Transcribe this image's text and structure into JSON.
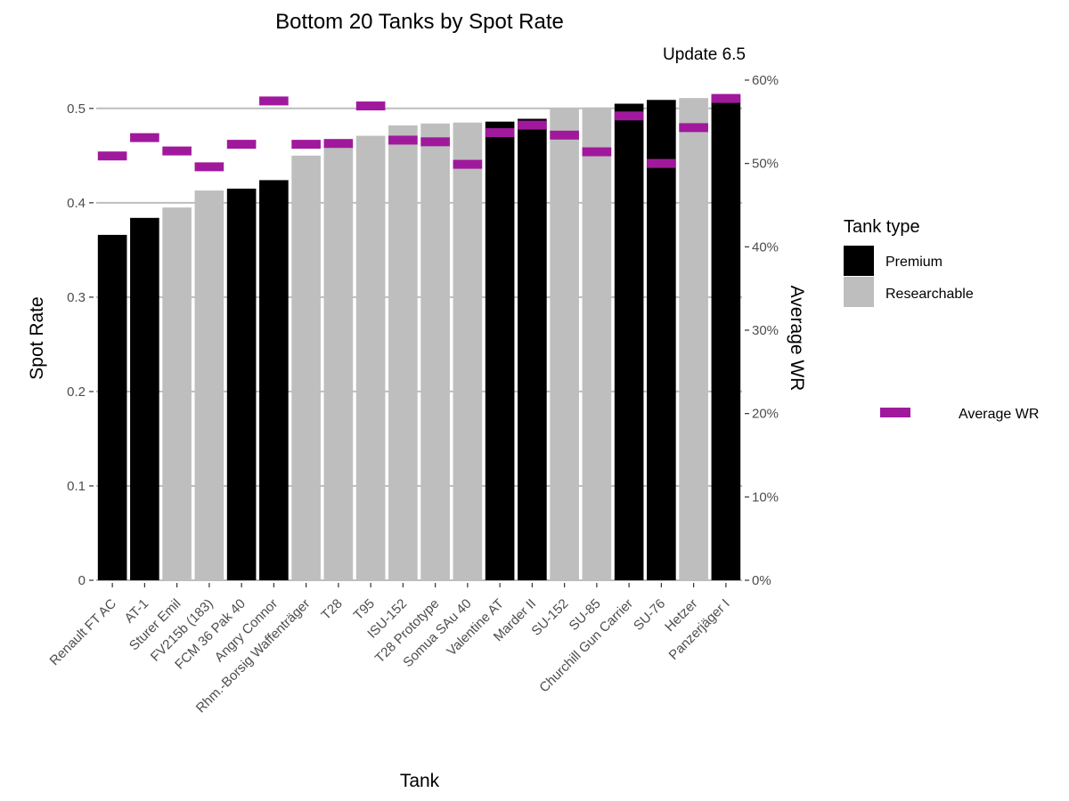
{
  "chart_data": {
    "type": "bar",
    "title": "Bottom 20 Tanks by Spot Rate",
    "subtitle": "Update 6.5",
    "xlabel": "Tank",
    "ylabel": "Spot Rate",
    "y2label": "Average WR",
    "ylim": [
      0,
      0.53
    ],
    "y2lim": [
      0,
      0.6
    ],
    "yticks": [
      0,
      0.1,
      0.2,
      0.3,
      0.4,
      0.5
    ],
    "ytick_labels": [
      "0",
      "0.1",
      "0.2",
      "0.3",
      "0.4",
      "0.5"
    ],
    "y2ticks": [
      0,
      0.1,
      0.2,
      0.3,
      0.4,
      0.5,
      0.6
    ],
    "y2tick_labels": [
      "0%",
      "10%",
      "20%",
      "30%",
      "40%",
      "50%",
      "60%"
    ],
    "grid": true,
    "categories": [
      "Renault FT AC",
      "AT-1",
      "Sturer Emil",
      "FV215b (183)",
      "FCM 36 Pak 40",
      "Angry Connor",
      "Rhm.-Borsig Waffenträger",
      "T28",
      "T95",
      "ISU-152",
      "T28 Prototype",
      "Somua SAu 40",
      "Valentine AT",
      "Marder II",
      "SU-152",
      "SU-85",
      "Churchill Gun Carrier",
      "SU-76",
      "Hetzer",
      "Panzerjäger I"
    ],
    "tank_type": [
      "Premium",
      "Premium",
      "Researchable",
      "Researchable",
      "Premium",
      "Premium",
      "Researchable",
      "Researchable",
      "Researchable",
      "Researchable",
      "Researchable",
      "Researchable",
      "Premium",
      "Premium",
      "Researchable",
      "Researchable",
      "Premium",
      "Premium",
      "Researchable",
      "Premium"
    ],
    "spot_rate": [
      0.366,
      0.384,
      0.395,
      0.413,
      0.415,
      0.424,
      0.45,
      0.461,
      0.471,
      0.482,
      0.484,
      0.485,
      0.486,
      0.489,
      0.5,
      0.501,
      0.505,
      0.509,
      0.511,
      0.514
    ],
    "average_wr": [
      0.509,
      0.531,
      0.515,
      0.496,
      0.523,
      0.575,
      0.523,
      0.524,
      0.569,
      0.528,
      0.526,
      0.499,
      0.537,
      0.546,
      0.534,
      0.514,
      0.557,
      0.5,
      0.543,
      0.578
    ],
    "legend": {
      "title": "Tank type",
      "entries": [
        {
          "label": "Premium",
          "color": "#000000"
        },
        {
          "label": "Researchable",
          "color": "#bebebe"
        }
      ],
      "wr_entry": {
        "label": "Average WR",
        "color": "#a0199c"
      },
      "placement": "right"
    },
    "colors": {
      "Premium": "#000000",
      "Researchable": "#bebebe",
      "average_wr": "#a0199c",
      "grid": "#bebebe"
    }
  }
}
